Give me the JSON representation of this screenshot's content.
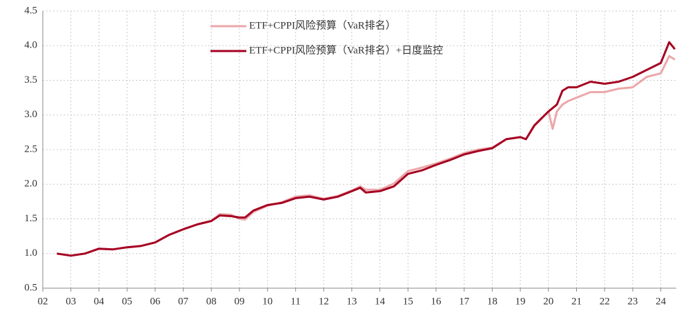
{
  "chart_data": {
    "type": "line",
    "legend": "upper center",
    "grid": true,
    "xlim": [
      2002,
      2024.55
    ],
    "xticks": [
      {
        "value": 2002,
        "label": "02"
      },
      {
        "value": 2003,
        "label": "03"
      },
      {
        "value": 2004,
        "label": "04"
      },
      {
        "value": 2005,
        "label": "05"
      },
      {
        "value": 2006,
        "label": "06"
      },
      {
        "value": 2007,
        "label": "07"
      },
      {
        "value": 2008,
        "label": "08"
      },
      {
        "value": 2009,
        "label": "09"
      },
      {
        "value": 2010,
        "label": "10"
      },
      {
        "value": 2011,
        "label": "11"
      },
      {
        "value": 2012,
        "label": "12"
      },
      {
        "value": 2013,
        "label": "13"
      },
      {
        "value": 2014,
        "label": "14"
      },
      {
        "value": 2015,
        "label": "15"
      },
      {
        "value": 2016,
        "label": "16"
      },
      {
        "value": 2017,
        "label": "17"
      },
      {
        "value": 2018,
        "label": "18"
      },
      {
        "value": 2019,
        "label": "19"
      },
      {
        "value": 2020,
        "label": "20"
      },
      {
        "value": 2021,
        "label": "21"
      },
      {
        "value": 2022,
        "label": "22"
      },
      {
        "value": 2023,
        "label": "23"
      },
      {
        "value": 2024,
        "label": "24"
      }
    ],
    "ylim": [
      0.5,
      4.5
    ],
    "yticks": [
      {
        "value": 0.5,
        "label": "0.5"
      },
      {
        "value": 1,
        "label": "1.0"
      },
      {
        "value": 1.5,
        "label": "1.5"
      },
      {
        "value": 2,
        "label": "2.0"
      },
      {
        "value": 2.5,
        "label": "2.5"
      },
      {
        "value": 3,
        "label": "3.0"
      },
      {
        "value": 3.5,
        "label": "3.5"
      },
      {
        "value": 4,
        "label": "4.0"
      },
      {
        "value": 4.5,
        "label": "4.5"
      }
    ],
    "x": [
      2002.5,
      2003.0,
      2003.5,
      2004.0,
      2004.5,
      2005.0,
      2005.5,
      2006.0,
      2006.5,
      2007.0,
      2007.5,
      2008.0,
      2008.3,
      2008.7,
      2009.0,
      2009.2,
      2009.5,
      2010.0,
      2010.5,
      2011.0,
      2011.5,
      2012.0,
      2012.5,
      2013.0,
      2013.3,
      2013.5,
      2014.0,
      2014.5,
      2015.0,
      2015.5,
      2016.0,
      2016.5,
      2017.0,
      2017.5,
      2018.0,
      2018.5,
      2019.0,
      2019.2,
      2019.5,
      2020.0,
      2020.15,
      2020.3,
      2020.5,
      2020.7,
      2021.0,
      2021.5,
      2022.0,
      2022.5,
      2023.0,
      2023.5,
      2024.0,
      2024.3,
      2024.5
    ],
    "series": [
      {
        "name": "ETF+CPPI风险预算（VaR排名）",
        "color": "#eba7a9",
        "values": [
          1.0,
          0.97,
          1.0,
          1.07,
          1.06,
          1.09,
          1.11,
          1.16,
          1.27,
          1.35,
          1.42,
          1.47,
          1.57,
          1.56,
          1.5,
          1.49,
          1.6,
          1.69,
          1.74,
          1.82,
          1.84,
          1.79,
          1.83,
          1.91,
          1.97,
          1.92,
          1.92,
          2.01,
          2.19,
          2.24,
          2.3,
          2.37,
          2.45,
          2.5,
          2.53,
          2.65,
          2.68,
          2.65,
          2.84,
          3.05,
          2.8,
          3.05,
          3.15,
          3.2,
          3.25,
          3.33,
          3.33,
          3.38,
          3.4,
          3.55,
          3.6,
          3.85,
          3.8
        ]
      },
      {
        "name": "ETF+CPPI风险预算（VaR排名）+日度监控",
        "color": "#a50021",
        "values": [
          1.0,
          0.97,
          1.0,
          1.07,
          1.06,
          1.09,
          1.11,
          1.16,
          1.27,
          1.35,
          1.42,
          1.47,
          1.55,
          1.54,
          1.52,
          1.52,
          1.62,
          1.7,
          1.73,
          1.8,
          1.82,
          1.78,
          1.82,
          1.9,
          1.95,
          1.88,
          1.9,
          1.97,
          2.15,
          2.2,
          2.28,
          2.35,
          2.43,
          2.48,
          2.52,
          2.65,
          2.68,
          2.65,
          2.85,
          3.05,
          3.1,
          3.15,
          3.35,
          3.4,
          3.4,
          3.48,
          3.45,
          3.48,
          3.55,
          3.65,
          3.75,
          4.05,
          3.95
        ]
      }
    ]
  }
}
